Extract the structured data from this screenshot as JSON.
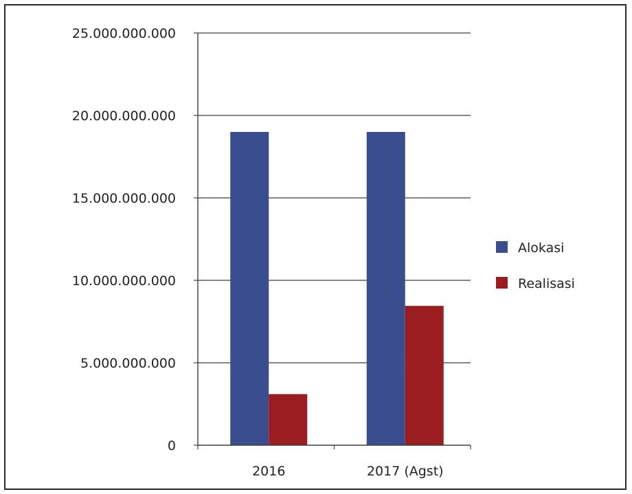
{
  "chart_data": {
    "type": "bar",
    "categories": [
      "2016",
      "2017 (Agst)"
    ],
    "series": [
      {
        "name": "Alokasi",
        "values": [
          19000000000,
          19000000000
        ],
        "color": "#3a4d8f"
      },
      {
        "name": "Realisasi",
        "values": [
          3100000000,
          8450000000
        ],
        "color": "#9c1d1f"
      }
    ],
    "ylim": [
      0,
      25000000000
    ],
    "yticks": [
      0,
      5000000000,
      10000000000,
      15000000000,
      20000000000,
      25000000000
    ],
    "ytick_labels": [
      "0",
      "5.000.000.000",
      "10.000.000.000",
      "15.000.000.000",
      "20.000.000.000",
      "25.000.000.000"
    ],
    "title": "",
    "xlabel": "",
    "ylabel": "",
    "grid": true,
    "legend_position": "right"
  }
}
